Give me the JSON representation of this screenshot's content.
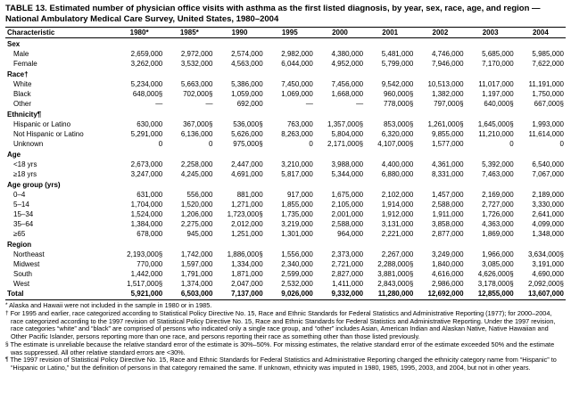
{
  "title": "TABLE 13. Estimated number of physician office visits with asthma as the first listed diagnosis, by year, sex, race, age, and region — National Ambulatory Medical Care Survey, United States, 1980–2004",
  "table": {
    "columns": [
      "Characteristic",
      "1980*",
      "1985*",
      "1990",
      "1995",
      "2000",
      "2001",
      "2002",
      "2003",
      "2004"
    ],
    "sections": [
      {
        "header": "Sex",
        "rows": [
          {
            "label": "Male",
            "values": [
              "2,659,000",
              "2,972,000",
              "2,574,000",
              "2,982,000",
              "4,380,000",
              "5,481,000",
              "4,746,000",
              "5,685,000",
              "5,985,000"
            ]
          },
          {
            "label": "Female",
            "values": [
              "3,262,000",
              "3,532,000",
              "4,563,000",
              "6,044,000",
              "4,952,000",
              "5,799,000",
              "7,946,000",
              "7,170,000",
              "7,622,000"
            ]
          }
        ]
      },
      {
        "header": "Race†",
        "rows": [
          {
            "label": "White",
            "values": [
              "5,234,000",
              "5,663,000",
              "5,386,000",
              "7,450,000",
              "7,456,000",
              "9,542,000",
              "10,513,000",
              "11,017,000",
              "11,191,000"
            ]
          },
          {
            "label": "Black",
            "values": [
              "648,000§",
              "702,000§",
              "1,059,000",
              "1,069,000",
              "1,668,000",
              "960,000§",
              "1,382,000",
              "1,197,000",
              "1,750,000"
            ]
          },
          {
            "label": "Other",
            "values": [
              "—",
              "—",
              "692,000",
              "—",
              "—",
              "778,000§",
              "797,000§",
              "640,000§",
              "667,000§"
            ]
          }
        ]
      },
      {
        "header": "Ethnicity¶",
        "rows": [
          {
            "label": "Hispanic or Latino",
            "values": [
              "630,000",
              "367,000§",
              "536,000§",
              "763,000",
              "1,357,000§",
              "853,000§",
              "1,261,000§",
              "1,645,000§",
              "1,993,000"
            ]
          },
          {
            "label": "Not Hispanic or Latino",
            "values": [
              "5,291,000",
              "6,136,000",
              "5,626,000",
              "8,263,000",
              "5,804,000",
              "6,320,000",
              "9,855,000",
              "11,210,000",
              "11,614,000"
            ]
          },
          {
            "label": "Unknown",
            "values": [
              "0",
              "0",
              "975,000§",
              "0",
              "2,171,000§",
              "4,107,000§",
              "1,577,000",
              "0",
              "0"
            ]
          }
        ]
      },
      {
        "header": "Age",
        "rows": [
          {
            "label": "<18 yrs",
            "values": [
              "2,673,000",
              "2,258,000",
              "2,447,000",
              "3,210,000",
              "3,988,000",
              "4,400,000",
              "4,361,000",
              "5,392,000",
              "6,540,000"
            ]
          },
          {
            "label": "≥18 yrs",
            "values": [
              "3,247,000",
              "4,245,000",
              "4,691,000",
              "5,817,000",
              "5,344,000",
              "6,880,000",
              "8,331,000",
              "7,463,000",
              "7,067,000"
            ]
          }
        ]
      },
      {
        "header": "Age group (yrs)",
        "rows": [
          {
            "label": "0–4",
            "values": [
              "631,000",
              "556,000",
              "881,000",
              "917,000",
              "1,675,000",
              "2,102,000",
              "1,457,000",
              "2,169,000",
              "2,189,000"
            ]
          },
          {
            "label": "5–14",
            "values": [
              "1,704,000",
              "1,520,000",
              "1,271,000",
              "1,855,000",
              "2,105,000",
              "1,914,000",
              "2,588,000",
              "2,727,000",
              "3,330,000"
            ]
          },
          {
            "label": "15–34",
            "values": [
              "1,524,000",
              "1,206,000",
              "1,723,000§",
              "1,735,000",
              "2,001,000",
              "1,912,000",
              "1,911,000",
              "1,726,000",
              "2,641,000"
            ]
          },
          {
            "label": "35–64",
            "values": [
              "1,384,000",
              "2,275,000",
              "2,012,000",
              "3,219,000",
              "2,588,000",
              "3,131,000",
              "3,858,000",
              "4,363,000",
              "4,099,000"
            ]
          },
          {
            "label": "≥65",
            "values": [
              "678,000",
              "945,000",
              "1,251,000",
              "1,301,000",
              "964,000",
              "2,221,000",
              "2,877,000",
              "1,869,000",
              "1,348,000"
            ]
          }
        ]
      },
      {
        "header": "Region",
        "rows": [
          {
            "label": "Northeast",
            "values": [
              "2,193,000§",
              "1,742,000",
              "1,886,000§",
              "1,556,000",
              "2,373,000",
              "2,267,000",
              "3,249,000",
              "1,966,000",
              "3,634,000§"
            ]
          },
          {
            "label": "Midwest",
            "values": [
              "770,000",
              "1,597,000",
              "1,334,000",
              "2,340,000",
              "2,721,000",
              "2,288,000§",
              "1,840,000",
              "3,085,000",
              "3,191,000"
            ]
          },
          {
            "label": "South",
            "values": [
              "1,442,000",
              "1,791,000",
              "1,871,000",
              "2,599,000",
              "2,827,000",
              "3,881,000§",
              "4,616,000",
              "4,626,000§",
              "4,690,000"
            ]
          },
          {
            "label": "West",
            "values": [
              "1,517,000§",
              "1,374,000",
              "2,047,000",
              "2,532,000",
              "1,411,000",
              "2,843,000§",
              "2,986,000",
              "3,178,000§",
              "2,092,000§"
            ]
          }
        ]
      }
    ],
    "total": {
      "label": "Total",
      "values": [
        "5,921,000",
        "6,503,000",
        "7,137,000",
        "9,026,000",
        "9,332,000",
        "11,280,000",
        "12,692,000",
        "12,855,000",
        "13,607,000"
      ]
    }
  },
  "footnotes": [
    {
      "marker": "*",
      "text": "Alaska and Hawaii were not included in the sample in 1980 or in 1985."
    },
    {
      "marker": "†",
      "text": "For 1995 and earlier, race categorized according to Statistical Policy Directive No. 15, Race and Ethnic Standards for Federal Statistics and Administrative Reporting (1977); for 2000–2004, race categorized according to the 1997 revision of Statistical Policy Directive No. 15, Race and Ethnic Standards for Federal Statistics and Administrative Reporting. Under the 1997 revision, race categories “white” and “black” are comprised of persons who indicated only a single race group, and “other” includes Asian, American Indian and Alaskan Native, Native Hawaiian and Other Pacific Islander, persons reporting more than one race, and persons reporting their race as something other than those listed previously."
    },
    {
      "marker": "§",
      "text": "The estimate is unreliable because the relative standard error of the estimate is 30%–50%. For missing estimates, the relative standard error of the estimate exceeded 50% and the estimate was suppressed. All other relative standard errors are <30%."
    },
    {
      "marker": "¶",
      "text": "The 1997 revision of Statistical Policy Directive No. 15, Race and Ethnic Standards for Federal Statistics and Administrative Reporting changed the ethnicity category name from “Hispanic” to “Hispanic or Latino,” but the definition of persons in that category remained the same. If unknown, ethnicity was imputed in 1980, 1985, 1995, 2003, and 2004, but not in other years."
    }
  ]
}
